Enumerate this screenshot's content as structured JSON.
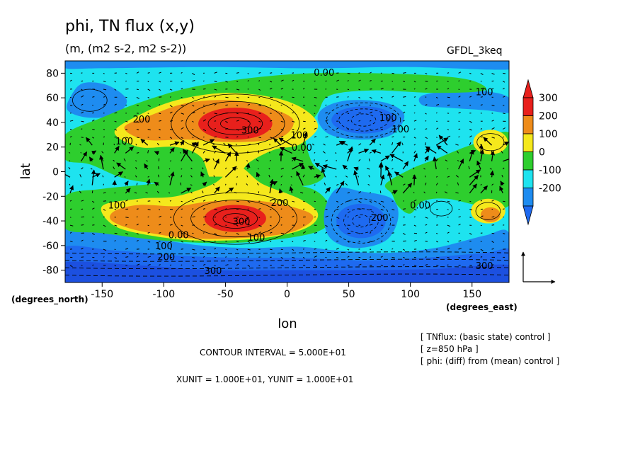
{
  "chart_data": {
    "type": "heatmap",
    "title": "phi, TN flux (x,y)",
    "subtitle": "(m, (m2 s-2, m2 s-2))",
    "model": "GFDL_3keq",
    "xlabel": "lon",
    "ylabel": "lat",
    "x_unit_label": "(degrees_east)",
    "y_unit_label": "(degrees_north)",
    "xlim": [
      -180,
      180
    ],
    "ylim": [
      -90,
      90
    ],
    "x_ticks": [
      -150,
      -100,
      -50,
      0,
      50,
      100,
      150
    ],
    "y_ticks": [
      80,
      60,
      40,
      20,
      0,
      -20,
      -40,
      -60,
      -80
    ],
    "colorbar": {
      "levels": [
        300,
        200,
        100,
        0,
        -100,
        -200
      ],
      "labels": [
        "300",
        "200",
        "100",
        "0",
        "-100",
        "-200"
      ],
      "colors": [
        "#e8201c",
        "#ee8c1a",
        "#f5e81c",
        "#2ece2e",
        "#1ee3ef",
        "#1e8cf0"
      ],
      "over_color": "#e8201c",
      "under_color": "#1e6af0"
    },
    "field_colors": {
      "gt300": "#e8201c",
      "200_300": "#ee8c1a",
      "100_200": "#f5e81c",
      "0_100": "#2ece2e",
      "m100_0": "#1ee3ef",
      "m200_m100": "#1e8cf0",
      "lt_m200": "#1e6af0",
      "lt_m300": "#1c50e0"
    },
    "contour_labels": [
      {
        "text": "0.00",
        "lon": 30,
        "lat": 78
      },
      {
        "text": "100",
        "lon": 160,
        "lat": 62
      },
      {
        "text": "200",
        "lon": -118,
        "lat": 40
      },
      {
        "text": "300",
        "lon": -30,
        "lat": 31
      },
      {
        "text": "100",
        "lon": -132,
        "lat": 22
      },
      {
        "text": "100",
        "lon": 10,
        "lat": 27
      },
      {
        "text": "0.00",
        "lon": 12,
        "lat": 17
      },
      {
        "text": "100",
        "lon": 82,
        "lat": 41
      },
      {
        "text": "100",
        "lon": 92,
        "lat": 32
      },
      {
        "text": "200",
        "lon": -6,
        "lat": -28
      },
      {
        "text": "100",
        "lon": -138,
        "lat": -30
      },
      {
        "text": "300",
        "lon": -37,
        "lat": -43
      },
      {
        "text": "0.00",
        "lon": -88,
        "lat": -54
      },
      {
        "text": "100",
        "lon": -25,
        "lat": -56
      },
      {
        "text": "100",
        "lon": -100,
        "lat": -63
      },
      {
        "text": "200",
        "lon": 75,
        "lat": -40
      },
      {
        "text": "0.00",
        "lon": 108,
        "lat": -30
      },
      {
        "text": "200",
        "lon": -98,
        "lat": -72
      },
      {
        "text": "300",
        "lon": -60,
        "lat": -83
      },
      {
        "text": "300",
        "lon": 160,
        "lat": -79
      }
    ],
    "grid": false,
    "legend_position": "right"
  },
  "footer": {
    "contour_interval": "CONTOUR INTERVAL = 5.000E+01",
    "units_line": "XUNIT = 1.000E+01, YUNIT = 1.000E+01",
    "info": [
      "[ TNflux: (basic state) control ]",
      "[ z=850 hPa ]",
      "[ phi: (diff) from (mean) control ]"
    ]
  }
}
